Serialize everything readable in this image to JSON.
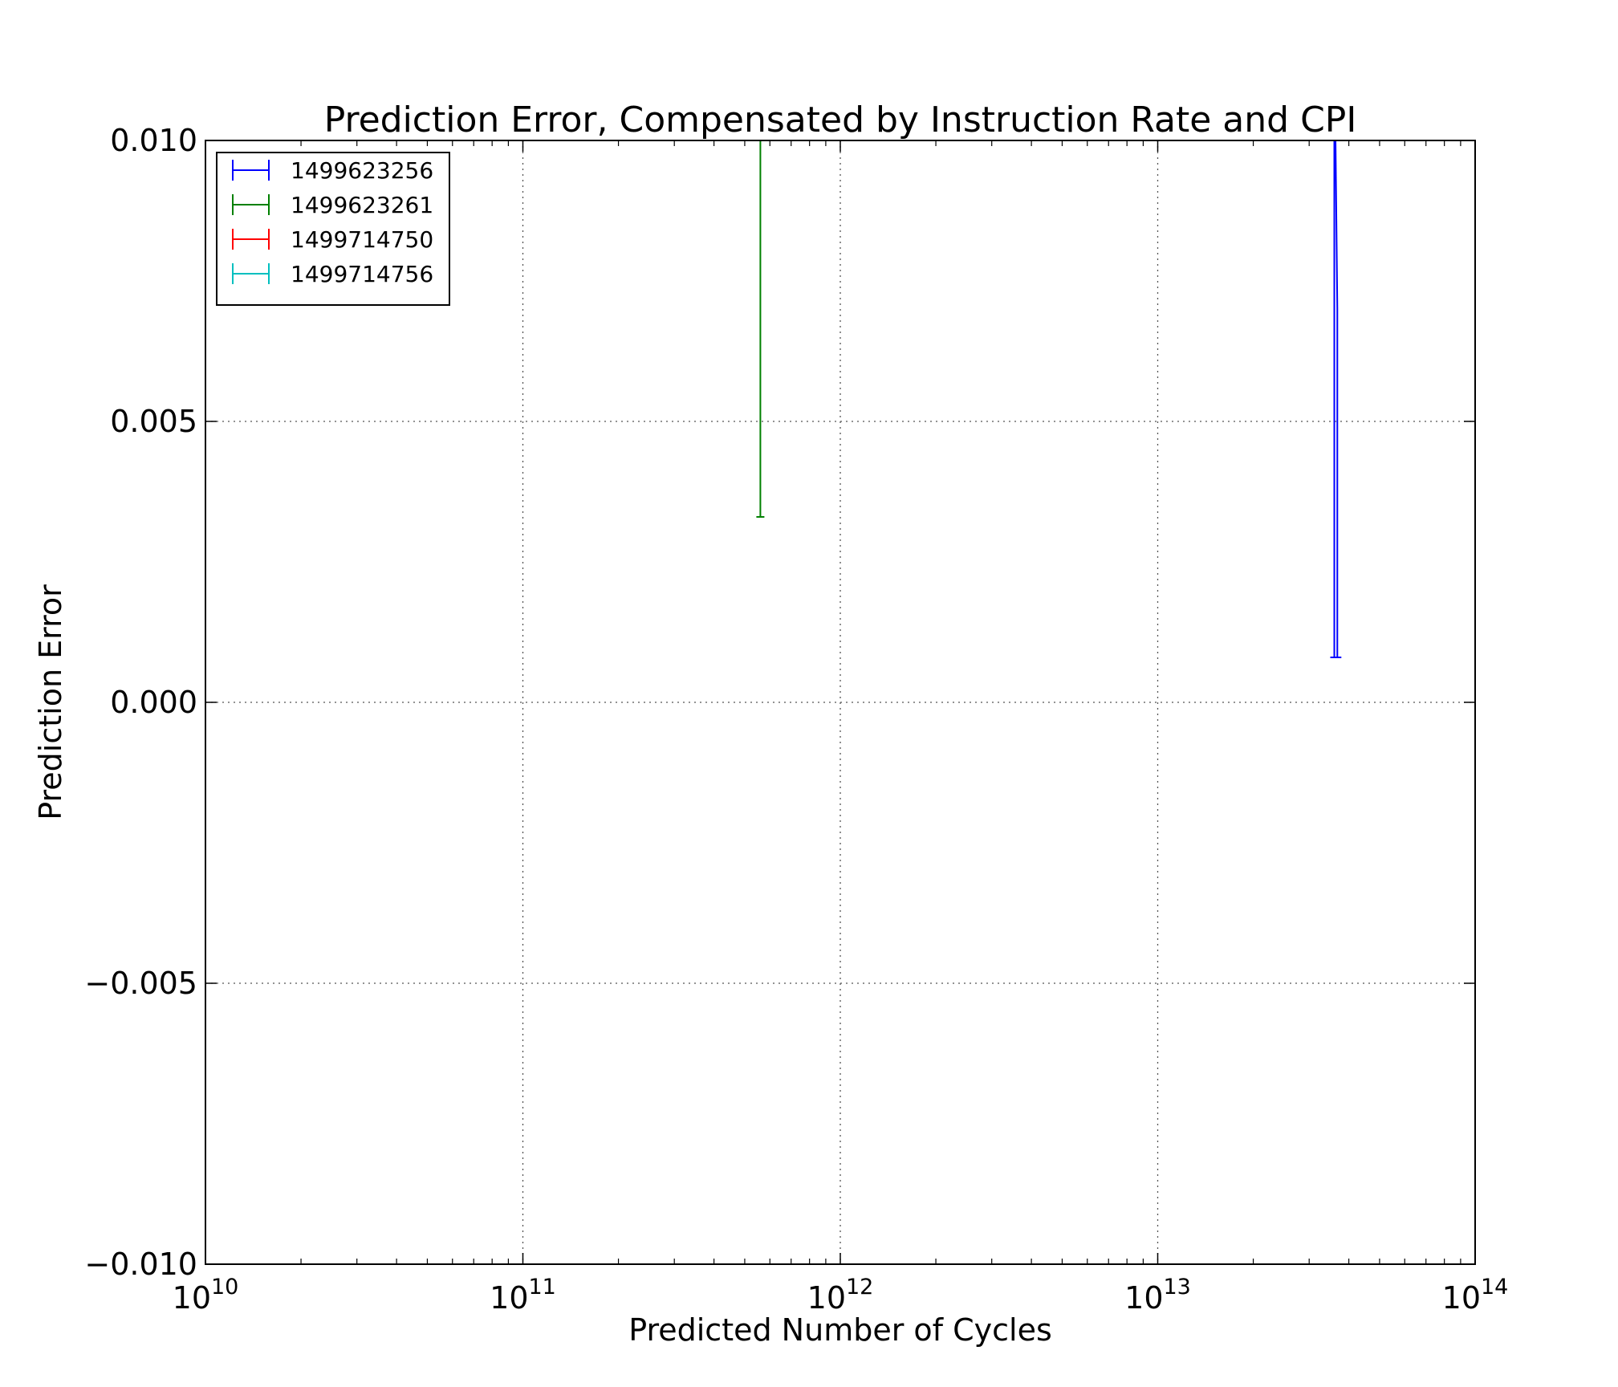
{
  "chart_data": {
    "type": "errorbar",
    "title": "Prediction Error, Compensated by Instruction Rate and CPI",
    "xlabel": "Predicted Number of Cycles",
    "ylabel": "Prediction Error",
    "xscale": "log",
    "xlim": [
      10000000000,
      100000000000000
    ],
    "ylim": [
      -0.01,
      0.01
    ],
    "x_ticks": [
      {
        "base": "10",
        "exp": "10",
        "value": 10000000000
      },
      {
        "base": "10",
        "exp": "11",
        "value": 100000000000
      },
      {
        "base": "10",
        "exp": "12",
        "value": 1000000000000
      },
      {
        "base": "10",
        "exp": "13",
        "value": 10000000000000
      },
      {
        "base": "10",
        "exp": "14",
        "value": 100000000000000
      }
    ],
    "y_ticks": [
      {
        "label": "0.010",
        "value": 0.01
      },
      {
        "label": "0.005",
        "value": 0.005
      },
      {
        "label": "0.000",
        "value": 0.0
      },
      {
        "label": "−0.005",
        "value": -0.005
      },
      {
        "label": "−0.010",
        "value": -0.01
      }
    ],
    "grid": true,
    "legend_position": "top-left",
    "series": [
      {
        "name": "1499623256",
        "color": "#0000ff",
        "points": [
          {
            "x": 36000000000000,
            "y": 0.012,
            "yerr_low": 0.0112
          },
          {
            "x": 36800000000000,
            "y": 0.007,
            "yerr_low": 0.0062
          }
        ]
      },
      {
        "name": "1499623261",
        "color": "#008000",
        "points": [
          {
            "x": 560000000000,
            "y": 0.012,
            "yerr_low": 0.0087
          }
        ]
      },
      {
        "name": "1499714750",
        "color": "#ff0000",
        "points": []
      },
      {
        "name": "1499714756",
        "color": "#00bfbf",
        "points": []
      }
    ]
  }
}
